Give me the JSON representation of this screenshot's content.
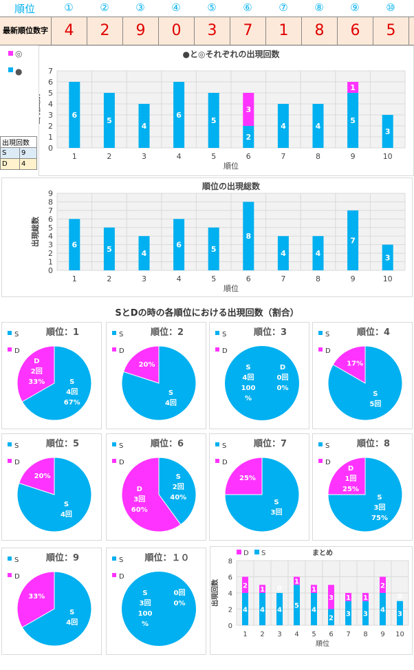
{
  "header": {
    "rank_label": "順位",
    "ranks": [
      "①",
      "②",
      "③",
      "④",
      "⑤",
      "⑥",
      "⑦",
      "⑧",
      "⑨",
      "⑩"
    ],
    "latest_label": "最新順位数字",
    "latest": [
      "4",
      "2",
      "9",
      "0",
      "3",
      "7",
      "1",
      "8",
      "6",
      "5"
    ]
  },
  "side_legend": {
    "marks": [
      "◎",
      "●"
    ],
    "table_title": "出現回数",
    "rows": [
      [
        "S",
        "9"
      ],
      [
        "D",
        "4"
      ]
    ]
  },
  "pie_section_title": "SとDの時の各順位における出現回数（割合）",
  "colors": {
    "cyan": "#00b0f0",
    "magenta": "#ff33ff",
    "grid": "#d9d9d9"
  },
  "chart_data": [
    {
      "type": "bar",
      "title": "●と◎それぞれの出現回数",
      "xlabel": "順位",
      "ylabel": "出現回数",
      "categories": [
        "1",
        "2",
        "3",
        "4",
        "5",
        "6",
        "7",
        "8",
        "9",
        "10"
      ],
      "series": [
        {
          "name": "●",
          "values": [
            6,
            5,
            4,
            6,
            5,
            2,
            4,
            4,
            5,
            3
          ]
        },
        {
          "name": "◎",
          "values": [
            0,
            0,
            0,
            0,
            0,
            3,
            0,
            0,
            1,
            0
          ]
        }
      ],
      "legend_position": "top-left",
      "ylim": [
        0,
        7
      ],
      "yticks": [
        "0",
        "1",
        "2",
        "3",
        "4",
        "5",
        "6",
        "7"
      ],
      "grid": true
    },
    {
      "type": "bar",
      "title": "順位の出現総数",
      "xlabel": "順位",
      "ylabel": "出現総数",
      "categories": [
        "1",
        "2",
        "3",
        "4",
        "5",
        "6",
        "7",
        "8",
        "9",
        "10"
      ],
      "values": [
        6,
        5,
        4,
        6,
        5,
        8,
        4,
        4,
        7,
        3
      ],
      "ylim": [
        0,
        9
      ],
      "yticks": [
        "0",
        "1",
        "2",
        "3",
        "4",
        "5",
        "6",
        "7",
        "8",
        "9"
      ],
      "grid": true
    },
    {
      "type": "pie",
      "panels": [
        {
          "title": "順位：1",
          "slices": [
            {
              "name": "S",
              "count": 4,
              "pct": 67,
              "labels": [
                "S",
                "4回",
                "67%"
              ]
            },
            {
              "name": "D",
              "count": 2,
              "pct": 33,
              "labels": [
                "D",
                "2回",
                "33%"
              ]
            }
          ]
        },
        {
          "title": "順位：2",
          "slices": [
            {
              "name": "S",
              "count": 4,
              "pct": 80,
              "labels": [
                "S",
                "4回"
              ]
            },
            {
              "name": "D",
              "count": 1,
              "pct": 20,
              "labels": [
                "20%"
              ]
            }
          ]
        },
        {
          "title": "順位：3",
          "slices": [
            {
              "name": "S",
              "count": 4,
              "pct": 100,
              "labels": [
                "S",
                "4回",
                "100",
                "%"
              ]
            },
            {
              "name": "D",
              "count": 0,
              "pct": 0,
              "labels": [
                "D",
                "0回",
                "0%"
              ]
            }
          ]
        },
        {
          "title": "順位：4",
          "slices": [
            {
              "name": "S",
              "count": 5,
              "pct": 83,
              "labels": [
                "S",
                "5回"
              ]
            },
            {
              "name": "D",
              "count": 1,
              "pct": 17,
              "labels": [
                "17%"
              ]
            }
          ]
        },
        {
          "title": "順位：5",
          "slices": [
            {
              "name": "S",
              "count": 4,
              "pct": 80,
              "labels": [
                "S",
                "4回"
              ]
            },
            {
              "name": "D",
              "count": 1,
              "pct": 20,
              "labels": [
                "20%"
              ]
            }
          ]
        },
        {
          "title": "順位：6",
          "slices": [
            {
              "name": "S",
              "count": 2,
              "pct": 40,
              "labels": [
                "S",
                "2回",
                "40%"
              ]
            },
            {
              "name": "D",
              "count": 3,
              "pct": 60,
              "labels": [
                "D",
                "3回",
                "60%"
              ]
            }
          ]
        },
        {
          "title": "順位：7",
          "slices": [
            {
              "name": "S",
              "count": 3,
              "pct": 75,
              "labels": [
                "S",
                "3回"
              ]
            },
            {
              "name": "D",
              "count": 1,
              "pct": 25,
              "labels": [
                "25%"
              ]
            }
          ]
        },
        {
          "title": "順位：8",
          "slices": [
            {
              "name": "S",
              "count": 3,
              "pct": 75,
              "labels": [
                "S",
                "3回",
                "75%"
              ]
            },
            {
              "name": "D",
              "count": 1,
              "pct": 25,
              "labels": [
                "D",
                "1回",
                "25%"
              ]
            }
          ]
        },
        {
          "title": "順位：9",
          "slices": [
            {
              "name": "S",
              "count": 4,
              "pct": 67,
              "labels": [
                "S",
                "4回"
              ]
            },
            {
              "name": "D",
              "count": 2,
              "pct": 33,
              "labels": [
                "33%"
              ]
            }
          ]
        },
        {
          "title": "順位：１０",
          "slices": [
            {
              "name": "S",
              "count": 3,
              "pct": 100,
              "labels": [
                "S",
                "3回",
                "100",
                "%"
              ]
            },
            {
              "name": "D",
              "count": 0,
              "pct": 0,
              "labels": [
                "0回",
                "0%"
              ]
            }
          ]
        }
      ]
    },
    {
      "type": "bar",
      "title": "まとめ",
      "xlabel": "順位",
      "ylabel": "出現回数",
      "categories": [
        "1",
        "2",
        "3",
        "4",
        "5",
        "6",
        "7",
        "8",
        "9",
        "10"
      ],
      "series": [
        {
          "name": "S",
          "values": [
            4,
            4,
            4,
            5,
            4,
            2,
            3,
            3,
            4,
            3
          ]
        },
        {
          "name": "D",
          "values": [
            2,
            1,
            0,
            1,
            1,
            3,
            1,
            1,
            2,
            0
          ]
        }
      ],
      "legend_position": "top-left",
      "ylim": [
        0,
        8
      ],
      "yticks": [
        "0",
        "2",
        "4",
        "6",
        "8"
      ],
      "grid": true
    }
  ]
}
